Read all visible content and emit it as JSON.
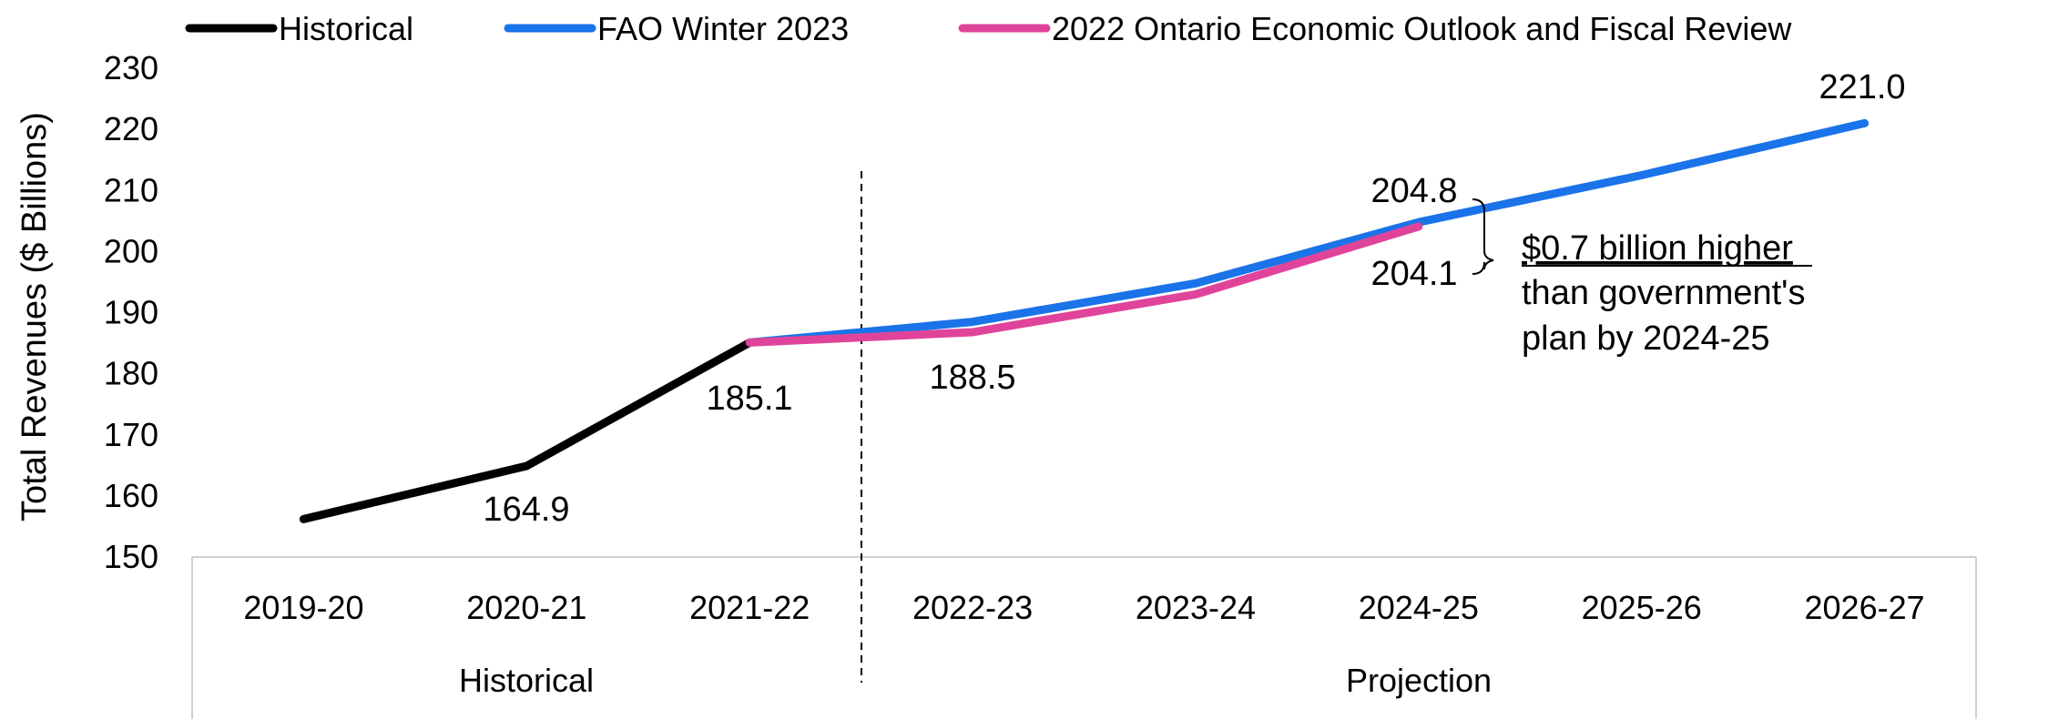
{
  "chart_data": {
    "type": "line",
    "ylabel": "Total Revenues ($ Billions)",
    "xlabel": "",
    "ylim": [
      150,
      230
    ],
    "yticks": [
      150,
      160,
      170,
      180,
      190,
      200,
      210,
      220,
      230
    ],
    "grid": false,
    "legend_position": "top",
    "categories": [
      "2019-20",
      "2020-21",
      "2021-22",
      "2022-23",
      "2023-24",
      "2024-25",
      "2025-26",
      "2026-27"
    ],
    "category_groups": [
      {
        "label": "Historical",
        "span": [
          "2019-20",
          "2021-22"
        ]
      },
      {
        "label": "Projection",
        "span": [
          "2022-23",
          "2026-27"
        ]
      }
    ],
    "series": [
      {
        "name": "Historical",
        "color": "#000000",
        "values": [
          156.2,
          164.9,
          185.1,
          null,
          null,
          null,
          null,
          null
        ]
      },
      {
        "name": "FAO Winter 2023",
        "color": "#1a73e8",
        "values": [
          null,
          null,
          185.1,
          188.5,
          194.8,
          204.8,
          212.5,
          221.0
        ]
      },
      {
        "name": "2022 Ontario Economic Outlook and Fiscal Review",
        "color": "#e0449a",
        "values": [
          null,
          null,
          185.1,
          186.8,
          193.0,
          204.1,
          null,
          null
        ]
      }
    ],
    "data_labels": [
      {
        "category": "2020-21",
        "text": "164.9"
      },
      {
        "category": "2021-22",
        "text": "185.1"
      },
      {
        "category": "2022-23",
        "text": "188.5"
      },
      {
        "category": "2024-25",
        "text": "204.8"
      },
      {
        "category": "2024-25",
        "text": "204.1"
      },
      {
        "category": "2026-27",
        "text": "221.0"
      }
    ],
    "annotation": {
      "lines": [
        "$0.7 billion higher",
        "than government's",
        "plan by 2024-25"
      ]
    },
    "divider_after": "2021-22"
  }
}
